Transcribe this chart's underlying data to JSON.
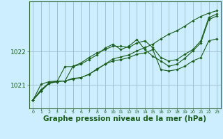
{
  "bg_color": "#cceeff",
  "grid_color": "#99bbcc",
  "line_color": "#1a5c1a",
  "marker_color": "#1a5c1a",
  "xlabel": "Graphe pression niveau de la mer (hPa)",
  "xlabel_fontsize": 7.5,
  "xlim": [
    -0.5,
    23.5
  ],
  "ylim": [
    1020.3,
    1023.5
  ],
  "yticks": [
    1021,
    1022
  ],
  "xticks": [
    0,
    1,
    2,
    3,
    4,
    5,
    6,
    7,
    8,
    9,
    10,
    11,
    12,
    13,
    14,
    15,
    16,
    17,
    18,
    19,
    20,
    21,
    22,
    23
  ],
  "series": [
    [
      1020.55,
      1020.82,
      1021.05,
      1021.1,
      1021.12,
      1021.18,
      1021.22,
      1021.32,
      1021.48,
      1021.62,
      1021.78,
      1021.84,
      1021.9,
      1022.02,
      1022.12,
      1022.22,
      1022.38,
      1022.52,
      1022.62,
      1022.76,
      1022.92,
      1023.05,
      1023.15,
      1023.22
    ],
    [
      1020.55,
      1020.82,
      1021.05,
      1021.1,
      1021.55,
      1021.55,
      1021.62,
      1021.76,
      1021.9,
      1022.1,
      1022.22,
      1022.06,
      1022.16,
      1022.36,
      1022.06,
      1021.86,
      1021.72,
      1021.56,
      1021.62,
      1021.8,
      1022.02,
      1022.26,
      1022.96,
      1023.06
    ],
    [
      1020.55,
      1021.02,
      1021.1,
      1021.12,
      1021.12,
      1021.2,
      1021.22,
      1021.32,
      1021.46,
      1021.62,
      1021.72,
      1021.76,
      1021.82,
      1021.92,
      1021.96,
      1022.06,
      1021.46,
      1021.42,
      1021.46,
      1021.56,
      1021.72,
      1021.82,
      1022.32,
      1022.38
    ],
    [
      1020.55,
      1020.86,
      1021.06,
      1021.12,
      1021.12,
      1021.56,
      1021.66,
      1021.82,
      1021.96,
      1022.06,
      1022.16,
      1022.16,
      1022.12,
      1022.26,
      1022.32,
      1022.12,
      1021.82,
      1021.72,
      1021.76,
      1021.92,
      1022.06,
      1022.32,
      1023.02,
      1023.12
    ]
  ]
}
